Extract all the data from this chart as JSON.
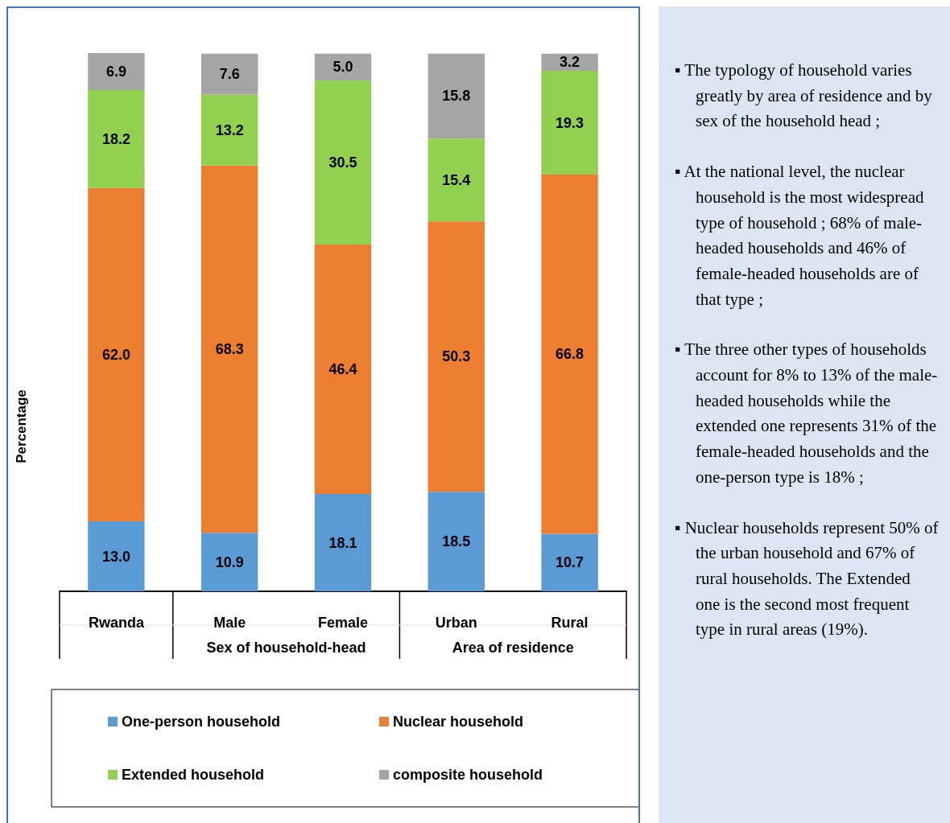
{
  "chart_data": {
    "type": "bar",
    "stacked": true,
    "ylabel": "Percentage",
    "tick_labels": "x",
    "grid": false,
    "legend": "bottom",
    "categories": [
      "Rwanda",
      "Male",
      "Female",
      "Urban",
      "Rural"
    ],
    "series": [
      {
        "name": "One-person household",
        "color": "#5b9bd5",
        "values": [
          13.0,
          10.9,
          18.1,
          18.5,
          10.7
        ],
        "value_labels": [
          "13.0",
          "10.9",
          "18.1",
          "18.5",
          "10.7"
        ]
      },
      {
        "name": "Nuclear household",
        "color": "#ed7d31",
        "values": [
          62.0,
          68.3,
          46.4,
          50.3,
          66.8
        ],
        "value_labels": [
          "62.0",
          "68.3",
          "46.4",
          "50.3",
          "66.8"
        ]
      },
      {
        "name": "Extended household",
        "color": "#92d050",
        "values": [
          18.2,
          13.2,
          30.5,
          15.4,
          19.3
        ],
        "value_labels": [
          "18.2",
          "13.2",
          "30.5",
          "15.4",
          "19.3"
        ]
      },
      {
        "name": "composite household",
        "color": "#a5a5a5",
        "values": [
          6.9,
          7.6,
          5.0,
          15.8,
          3.2
        ],
        "value_labels": [
          "6.9",
          "7.6",
          "5.0",
          "15.8",
          "3.2"
        ]
      }
    ],
    "annotations": [
      "Sex of household-head",
      "Area of residence",
      "▪ The typology of household varies greatly by area of residence and by sex of the household head ;",
      "▪ At the national level, the nuclear household is the most widespread type of household ; 68% of male-headed households and 46% of female-headed households are of that type ;",
      "▪ The three other types of households account for 8% to 13% of the male-headed households while the extended one represents 31% of the female-headed households and the one-person type is 18% ;",
      "▪ Nuclear households represent 50% of the urban household and 67% of rural households. The Extended one is the second most frequent type in rural areas (19%)."
    ]
  }
}
